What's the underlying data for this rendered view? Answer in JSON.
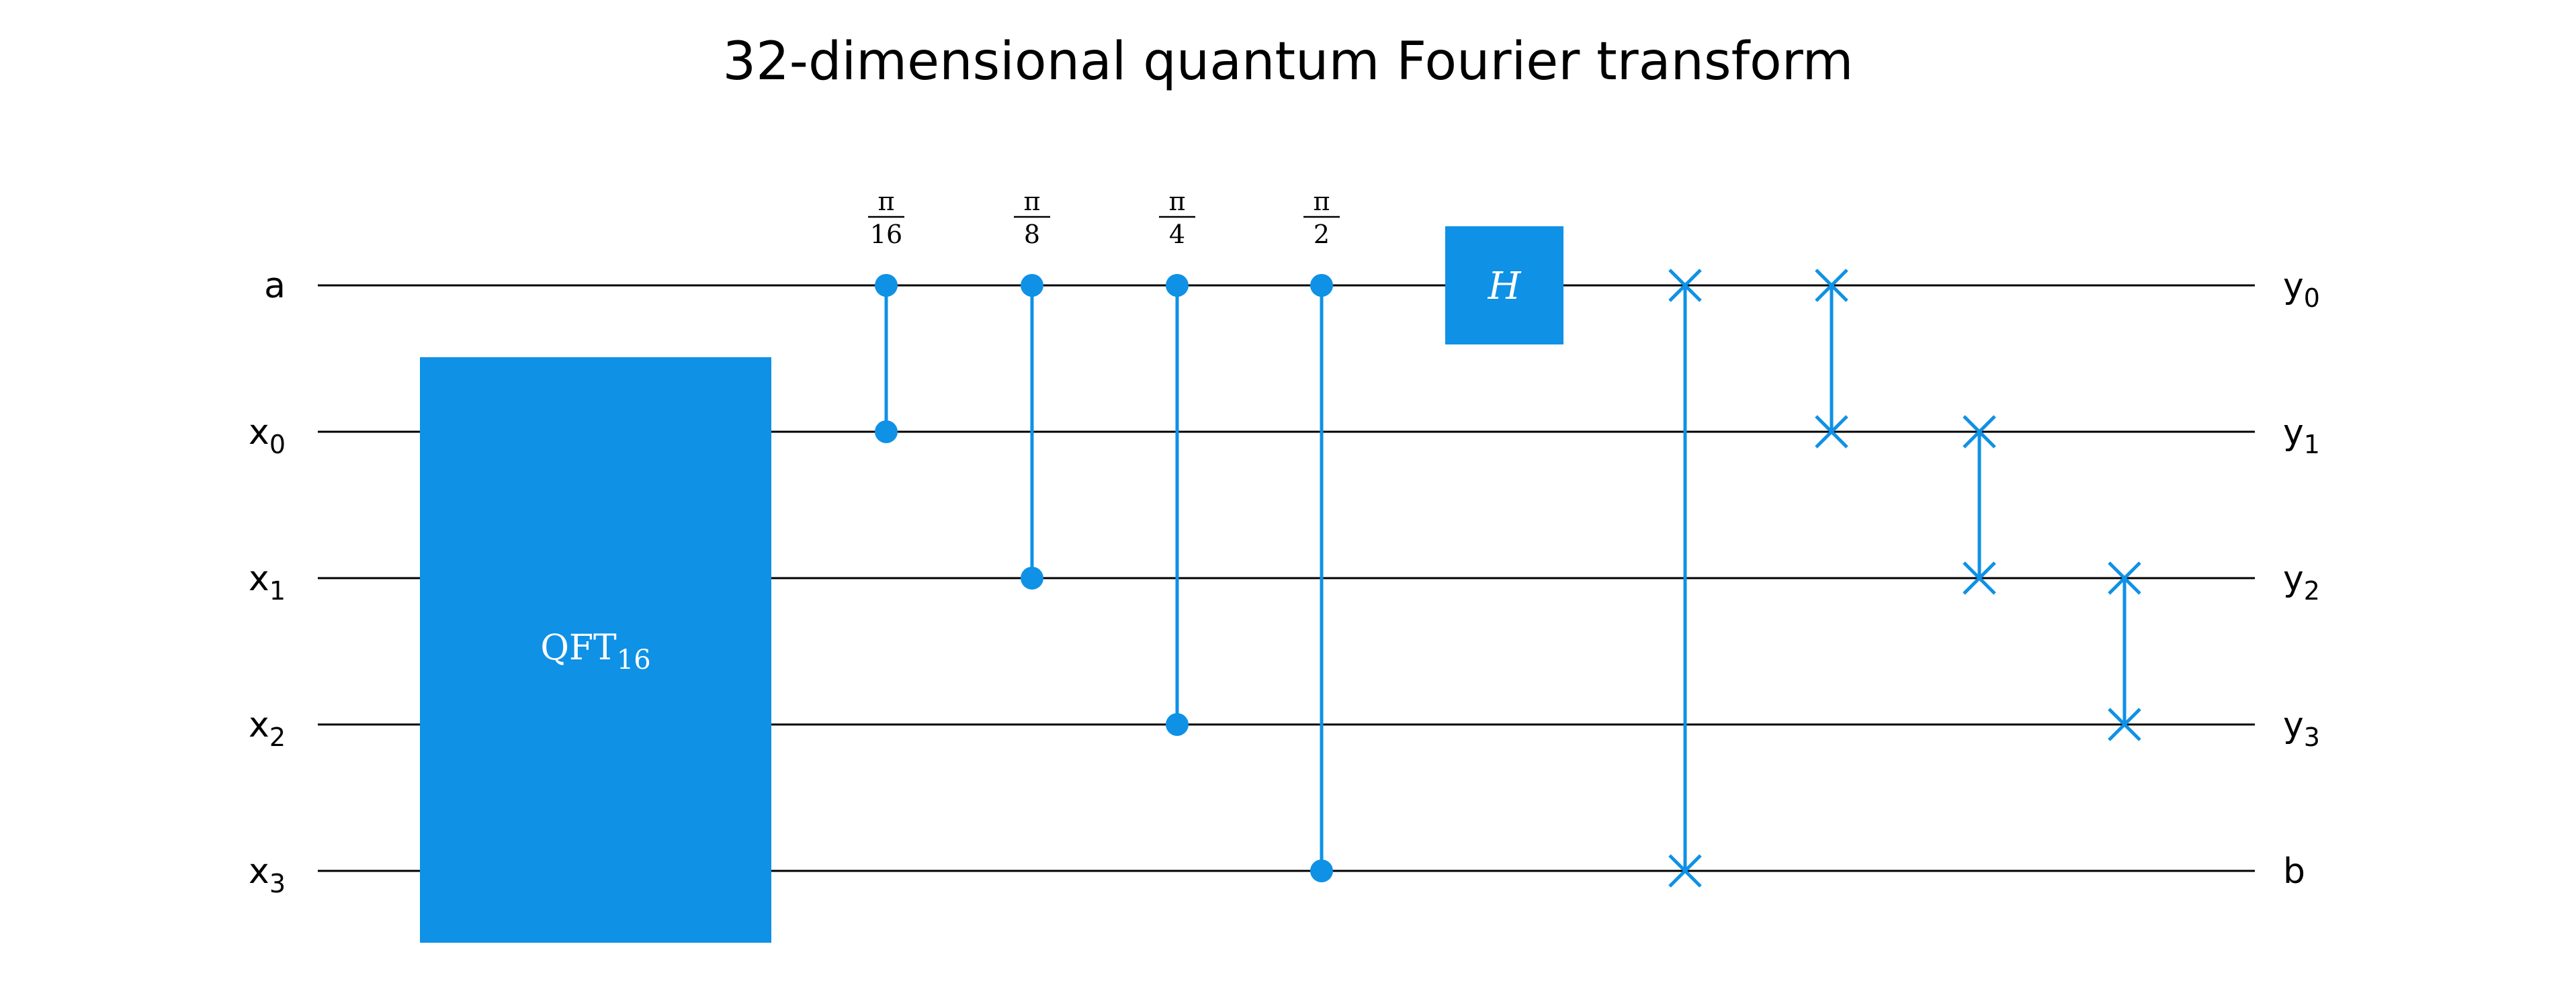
{
  "title": "32-dimensional quantum Fourier transform",
  "gate_color": "#0f91e6",
  "gate_text_color": "#ffffff",
  "wire_color": "#000000",
  "qubits": [
    {
      "input": "a",
      "output": "y",
      "output_sub": "0"
    },
    {
      "input": "x",
      "input_sub": "0",
      "output": "y",
      "output_sub": "1"
    },
    {
      "input": "x",
      "input_sub": "1",
      "output": "y",
      "output_sub": "2"
    },
    {
      "input": "x",
      "input_sub": "2",
      "output": "y",
      "output_sub": "3"
    },
    {
      "input": "x",
      "input_sub": "3",
      "output": "b"
    }
  ],
  "qft_block": {
    "label": "QFT",
    "label_sub": "16",
    "from_qubit": 1,
    "to_qubit": 4
  },
  "controlled_phases": [
    {
      "angle_num": "π",
      "angle_den": "16",
      "control": 0,
      "target": 1
    },
    {
      "angle_num": "π",
      "angle_den": "8",
      "control": 0,
      "target": 2
    },
    {
      "angle_num": "π",
      "angle_den": "4",
      "control": 0,
      "target": 3
    },
    {
      "angle_num": "π",
      "angle_den": "2",
      "control": 0,
      "target": 4
    }
  ],
  "hadamard": {
    "label": "H",
    "qubit": 0
  },
  "swaps": [
    {
      "q1": 0,
      "q2": 4
    },
    {
      "q1": 0,
      "q2": 1
    },
    {
      "q1": 1,
      "q2": 2
    },
    {
      "q1": 2,
      "q2": 3
    }
  ]
}
